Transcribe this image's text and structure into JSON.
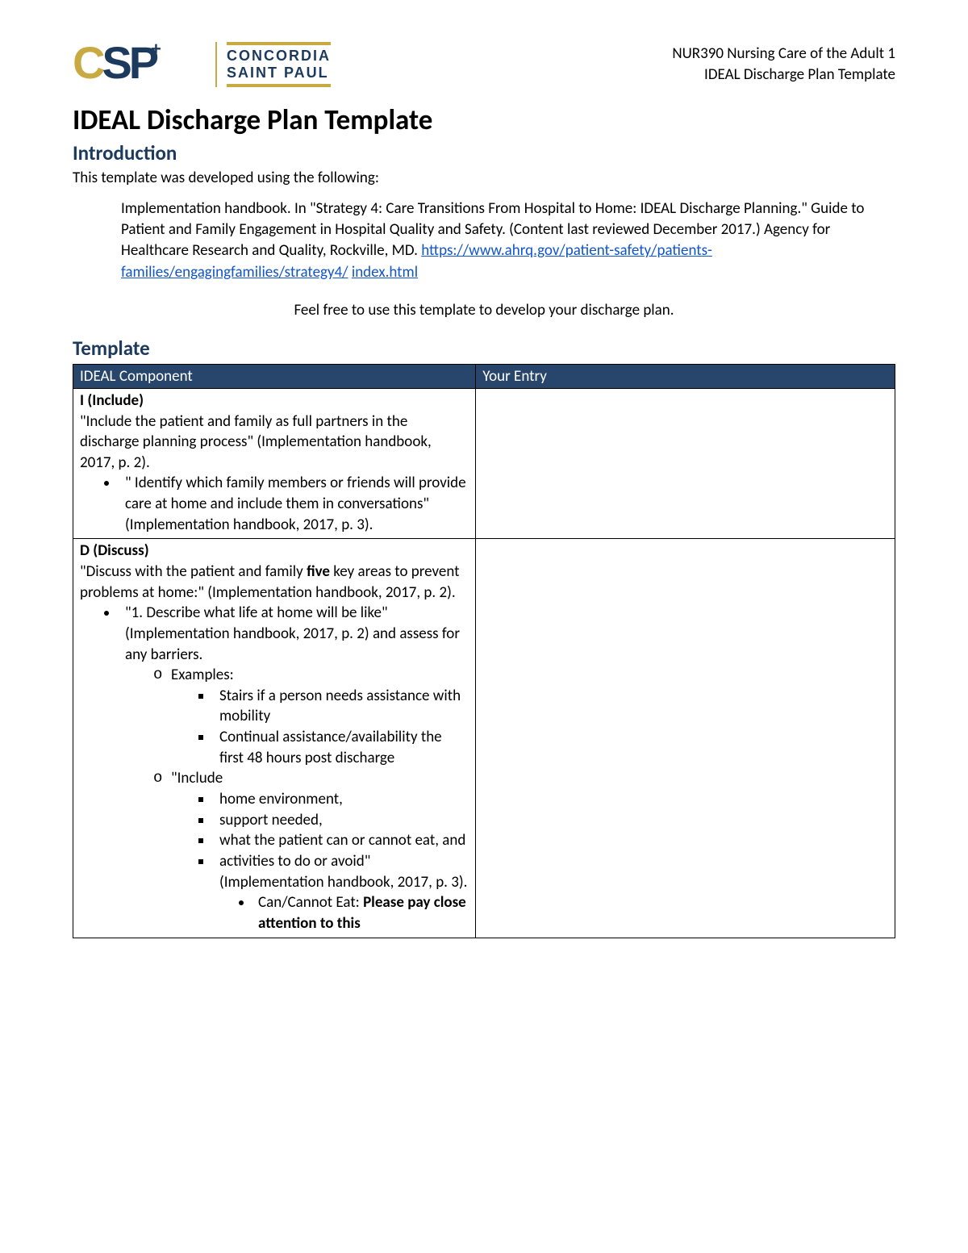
{
  "header": {
    "course_line1": "NUR390 Nursing Care of the Adult 1",
    "course_line2": "IDEAL Discharge Plan Template"
  },
  "logo": {
    "csp_text_c": "C",
    "csp_text_sp": "SP",
    "line1": "CONCORDIA",
    "line2": "SAINT PAUL",
    "colors": {
      "navy": "#1c3a5e",
      "gold": "#c9a942"
    }
  },
  "title": "IDEAL Discharge Plan Template",
  "sections": {
    "intro_heading": "Introduction",
    "intro_text": "This template was developed using the following:",
    "citation_pre": "Implementation handbook. In \"Strategy 4: Care Transitions From Hospital to Home: IDEAL Discharge Planning.\" Guide to Patient and Family Engagement in Hospital Quality and Safety. (Content last reviewed December 2017.) Agency for Healthcare Research and Quality, Rockville, MD. ",
    "citation_link_part1": "https://www.ahrq.gov/patient-safety/patients-families/engagingfamilies/strategy4/",
    "citation_link_part2": "index.html",
    "center_note": "Feel free to use this template to develop your discharge plan.",
    "template_heading": "Template"
  },
  "table": {
    "headers": {
      "col1": "IDEAL Component",
      "col2": "Your Entry"
    },
    "rows": {
      "i": {
        "head": "I (Include)",
        "desc": "\"Include the patient and family as full partners in the discharge planning process\" (Implementation handbook, 2017, p. 2).",
        "bullet1": "\" Identify which family members or friends will provide care at home and include them in conversations\" (Implementation handbook, 2017, p. 3)."
      },
      "d": {
        "head": "D (Discuss)",
        "desc1": "\"Discuss with the patient and family ",
        "desc_bold": "five",
        "desc2": " key areas to prevent problems at home:\" (Implementation handbook, 2017, p. 2).",
        "b1": "\"1. Describe what life at home will be like\" (Implementation handbook, 2017, p. 2) and assess for any barriers.",
        "b2a": "Examples:",
        "b3a": "Stairs if a person needs assistance with mobility",
        "b3b": "Continual assistance/availability the first 48 hours post discharge",
        "b2b": "\"Include",
        "b3c": "home environment,",
        "b3d": "support needed,",
        "b3e": "what the patient can or cannot eat, and",
        "b3f": "activities to do or avoid\" (Implementation handbook, 2017, p. 3).",
        "b4a": "Can/Cannot Eat: ",
        "b4a_bold": "Please pay close attention to this"
      }
    },
    "header_bg": "#28456c",
    "header_fg": "#ffffff"
  }
}
